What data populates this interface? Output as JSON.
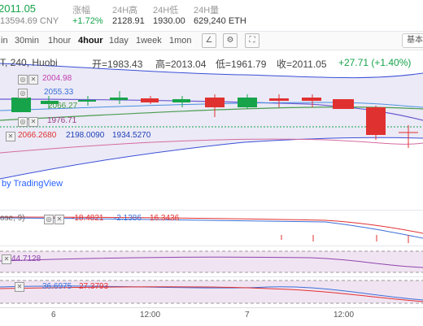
{
  "stats": {
    "price": "2011.05",
    "price_cny": "13594.69 CNY",
    "change_label": "涨幅",
    "change_value": "+1.72%",
    "high_label": "24H高",
    "high_value": "2128.91",
    "low_label": "24H低",
    "low_value": "1930.00",
    "volume_label": "24H量",
    "volume_value": "629,240 ETH"
  },
  "toolbar": {
    "timeframes": [
      "in",
      "30min",
      "1hour",
      "4hour",
      "1day",
      "1week",
      "1mon"
    ],
    "active": "4hour",
    "corner_label": "基本"
  },
  "chart": {
    "symbol": "T, 240, Huobi",
    "open_label": "开=1983.43",
    "high_label": "高=2013.04",
    "low_label": "低=1961.79",
    "close_label": "收=2011.05",
    "change": "+27.71 (+1.40%)",
    "ma_values": [
      "2004.98",
      "2055.33",
      "2066.27",
      "1976.71"
    ],
    "boll_values": [
      "2066.2680",
      "2198.0090",
      "1934.5270"
    ],
    "watermark": "by TradingView",
    "colors": {
      "up": "#16a34a",
      "down": "#e03131",
      "bg_band": "#e7e6f4"
    }
  },
  "macd": {
    "label": "ose, 9)",
    "v1": "-18.4821",
    "v2": "-2.1386",
    "v3": "16.3436"
  },
  "pane2": {
    "value": "44.7128"
  },
  "pane3": {
    "v1": "36.6975",
    "v2": "27.3793"
  },
  "xaxis": {
    "ticks": [
      "6",
      "12:00",
      "7",
      "12:00"
    ]
  }
}
